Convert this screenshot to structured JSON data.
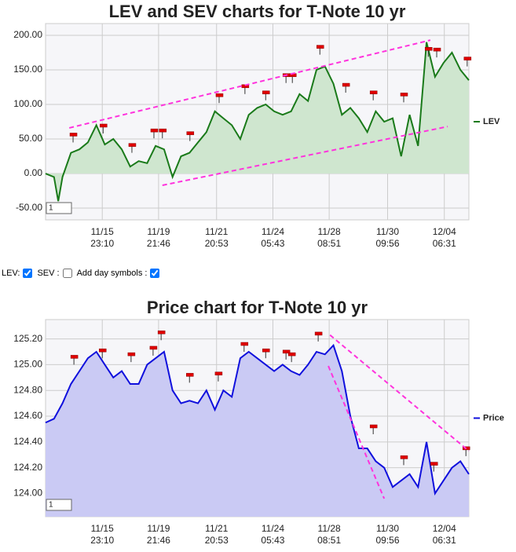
{
  "chart_data": [
    {
      "type": "line",
      "title": "LEV and SEV charts for T-Note 10 yr",
      "x": [
        0,
        2,
        3,
        4,
        6,
        8,
        10,
        12,
        14,
        16,
        18,
        20,
        22,
        24,
        26,
        28,
        30,
        32,
        34,
        36,
        38,
        40,
        42,
        44,
        46,
        48,
        50,
        52,
        54,
        56,
        58,
        60,
        62,
        64,
        66,
        68,
        70,
        72,
        74,
        76,
        78,
        80,
        82,
        84,
        86,
        88,
        90,
        92,
        94,
        96,
        98,
        100
      ],
      "series": [
        {
          "name": "LEV",
          "color": "#1a7a1a",
          "area_color": "#cfe6cf",
          "values": [
            0,
            -5,
            -40,
            -5,
            30,
            35,
            45,
            70,
            42,
            50,
            35,
            10,
            18,
            15,
            40,
            35,
            -5,
            25,
            30,
            45,
            60,
            90,
            80,
            70,
            50,
            85,
            95,
            100,
            90,
            85,
            90,
            115,
            105,
            150,
            155,
            130,
            85,
            95,
            80,
            60,
            90,
            75,
            80,
            25,
            85,
            40,
            190,
            140,
            160,
            175,
            150,
            135
          ]
        }
      ],
      "xlim": [
        0,
        100
      ],
      "xticks": [
        {
          "value": 13.4,
          "label": "11/15 23:10"
        },
        {
          "value": 26.7,
          "label": "11/19 21:46"
        },
        {
          "value": 40.4,
          "label": "11/21 20:53"
        },
        {
          "value": 53.7,
          "label": "11/24 05:43"
        },
        {
          "value": 67.0,
          "label": "11/28 08:51"
        },
        {
          "value": 80.8,
          "label": "11/30 09:56"
        },
        {
          "value": 94.2,
          "label": "12/04 06:31"
        }
      ],
      "ylim": [
        -67,
        217
      ],
      "yticks": [
        {
          "value": -50,
          "label": "-50.00"
        },
        {
          "value": 0,
          "label": "0.00"
        },
        {
          "value": 50,
          "label": "50.00"
        },
        {
          "value": 100,
          "label": "100.00"
        },
        {
          "value": 150,
          "label": "150.00"
        },
        {
          "value": 200,
          "label": "200.00"
        }
      ],
      "grid": true,
      "legend": "right",
      "day_symbols": {
        "color": "#e00000",
        "x": [
          6.5,
          13.6,
          20.4,
          25.6,
          27.6,
          34.1,
          41,
          47.1,
          52,
          56.8,
          58.3,
          64.8,
          70.9,
          77.4,
          84.6,
          90.4,
          92.4,
          99.6
        ],
        "values": [
          45,
          58,
          30,
          51,
          51,
          47,
          102,
          115,
          106,
          131,
          131,
          172,
          117,
          106,
          103,
          169,
          168,
          155
        ]
      },
      "trend_color": "#ff33dd",
      "trendlines": [
        {
          "x": [
            5.6,
            90.9
          ],
          "values": [
            66,
            193
          ]
        },
        {
          "x": [
            27.6,
            95
          ],
          "values": [
            -17,
            68
          ]
        }
      ],
      "input_value": "1"
    },
    {
      "type": "line",
      "title": "Price chart for T-Note 10 yr",
      "x": [
        0,
        2,
        4,
        6,
        8,
        10,
        12,
        14,
        16,
        18,
        20,
        22,
        24,
        26,
        28,
        30,
        32,
        34,
        36,
        38,
        40,
        42,
        44,
        46,
        48,
        50,
        52,
        54,
        56,
        58,
        60,
        62,
        64,
        66,
        68,
        70,
        72,
        74,
        76,
        78,
        80,
        82,
        84,
        86,
        88,
        90,
        92,
        94,
        96,
        98,
        100
      ],
      "series": [
        {
          "name": "Price",
          "color": "#1010dd",
          "area_color": "#cacaf4",
          "values": [
            124.55,
            124.58,
            124.7,
            124.85,
            124.95,
            125.05,
            125.1,
            125.0,
            124.9,
            124.95,
            124.85,
            124.85,
            125.0,
            125.05,
            125.1,
            124.8,
            124.7,
            124.72,
            124.7,
            124.8,
            124.65,
            124.8,
            124.75,
            125.05,
            125.1,
            125.05,
            125.0,
            124.95,
            125.0,
            124.95,
            124.92,
            125.0,
            125.1,
            125.08,
            125.15,
            124.95,
            124.6,
            124.35,
            124.35,
            124.25,
            124.2,
            124.05,
            124.1,
            124.15,
            124.05,
            124.4,
            124.0,
            124.1,
            124.2,
            124.25,
            124.15
          ]
        }
      ],
      "xlim": [
        0,
        100
      ],
      "xticks": [
        {
          "value": 13.4,
          "label": "11/15 23:10"
        },
        {
          "value": 26.7,
          "label": "11/19 21:46"
        },
        {
          "value": 40.4,
          "label": "11/21 20:53"
        },
        {
          "value": 53.7,
          "label": "11/24 05:43"
        },
        {
          "value": 67.0,
          "label": "11/28 08:51"
        },
        {
          "value": 80.8,
          "label": "11/30 09:56"
        },
        {
          "value": 94.2,
          "label": "12/04 06:31"
        }
      ],
      "ylim": [
        123.82,
        125.35
      ],
      "yticks": [
        {
          "value": 124,
          "label": "124.00"
        },
        {
          "value": 124.2,
          "label": "124.20"
        },
        {
          "value": 124.4,
          "label": "124.40"
        },
        {
          "value": 124.6,
          "label": "124.60"
        },
        {
          "value": 124.8,
          "label": "124.80"
        },
        {
          "value": 125,
          "label": "125.00"
        },
        {
          "value": 125.2,
          "label": "125.20"
        }
      ],
      "grid": true,
      "legend": "right",
      "day_symbols": {
        "color": "#e00000",
        "x": [
          6.7,
          13.4,
          20.2,
          25.4,
          27.3,
          34,
          40.8,
          46.9,
          52,
          56.8,
          58.1,
          64.4,
          77.4,
          84.6,
          91.7,
          99.3
        ],
        "values": [
          125.0,
          125.05,
          125.02,
          125.07,
          125.19,
          124.86,
          124.87,
          125.1,
          125.05,
          125.04,
          125.02,
          125.18,
          124.46,
          124.22,
          124.17,
          124.29
        ]
      },
      "trend_color": "#ff33dd",
      "trendlines": [
        {
          "x": [
            67.2,
            100
          ],
          "values": [
            125.23,
            124.33
          ]
        },
        {
          "x": [
            66.8,
            80
          ],
          "values": [
            124.99,
            123.96
          ]
        }
      ],
      "input_value": "1"
    }
  ],
  "controls": {
    "labels": [
      "LEV:",
      "SEV :",
      "Add day symbols :"
    ],
    "checked": [
      true,
      false,
      true
    ]
  }
}
